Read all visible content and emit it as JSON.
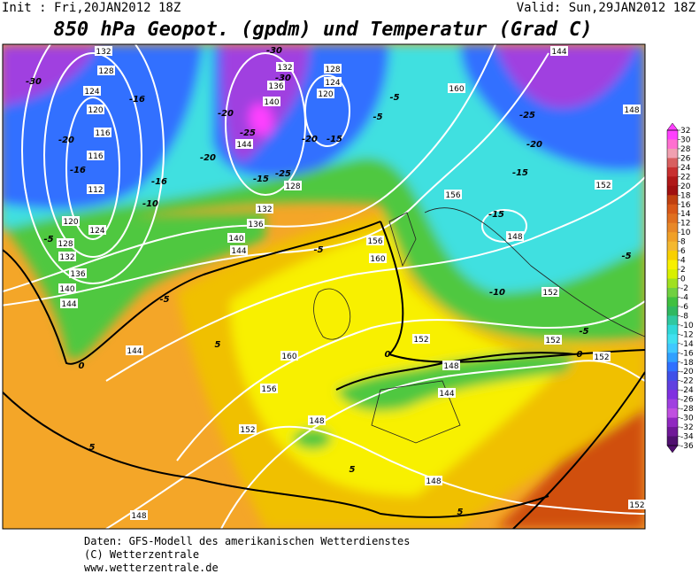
{
  "header": {
    "init": "Init : Fri,20JAN2012 18Z",
    "valid": "Valid: Sun,29JAN2012 18Z",
    "title": "850 hPa Geopot. (gpdm) und Temperatur (Grad C)"
  },
  "map": {
    "geopotential_labels": [
      132,
      128,
      124,
      120,
      116,
      116,
      112,
      120,
      124,
      128,
      132,
      136,
      140,
      144,
      132,
      136,
      140,
      144,
      128,
      132,
      136,
      140,
      144,
      128,
      124,
      120,
      156,
      160,
      160,
      156,
      148,
      152,
      152,
      148,
      144,
      152,
      152,
      152,
      148,
      144,
      160,
      156,
      152,
      148,
      148,
      148,
      152,
      144
    ],
    "temperature_labels": [
      -30,
      -16,
      -20,
      -16,
      -16,
      -10,
      -5,
      -30,
      -30,
      -25,
      -20,
      -20,
      -15,
      -25,
      -15,
      -5,
      -5,
      -25,
      -20,
      -15,
      -15,
      -10,
      -5,
      -5,
      -5,
      -5,
      0,
      0,
      0,
      5,
      5,
      5,
      5,
      -20
    ]
  },
  "colorbar": {
    "labels": [
      32,
      30,
      28,
      26,
      24,
      22,
      20,
      18,
      16,
      14,
      12,
      10,
      8,
      6,
      4,
      2,
      0,
      -2,
      -4,
      -6,
      -8,
      -10,
      -12,
      -14,
      -16,
      -18,
      -20,
      -22,
      -24,
      -26,
      -28,
      -30,
      -32,
      -34,
      -36
    ],
    "colors": [
      "#ff40ff",
      "#ff70d0",
      "#f0a0b0",
      "#d86060",
      "#c83030",
      "#b01818",
      "#a01010",
      "#c04010",
      "#d85818",
      "#e07020",
      "#e88828",
      "#f0a028",
      "#f4b830",
      "#f8d000",
      "#f8f000",
      "#d8f000",
      "#a0e020",
      "#70d040",
      "#40c040",
      "#30b860",
      "#30c8a0",
      "#30d8d8",
      "#40e0f0",
      "#40c8ff",
      "#30a0ff",
      "#3070ff",
      "#4050e8",
      "#6040e0",
      "#8030e0",
      "#a040e0",
      "#c050e0",
      "#9028c0",
      "#701898",
      "#501070"
    ]
  },
  "footer": {
    "line1": "Daten: GFS-Modell des amerikanischen Wetterdienstes",
    "line2": "(C) Wetterzentrale",
    "line3": "www.wetterzentrale.de"
  }
}
